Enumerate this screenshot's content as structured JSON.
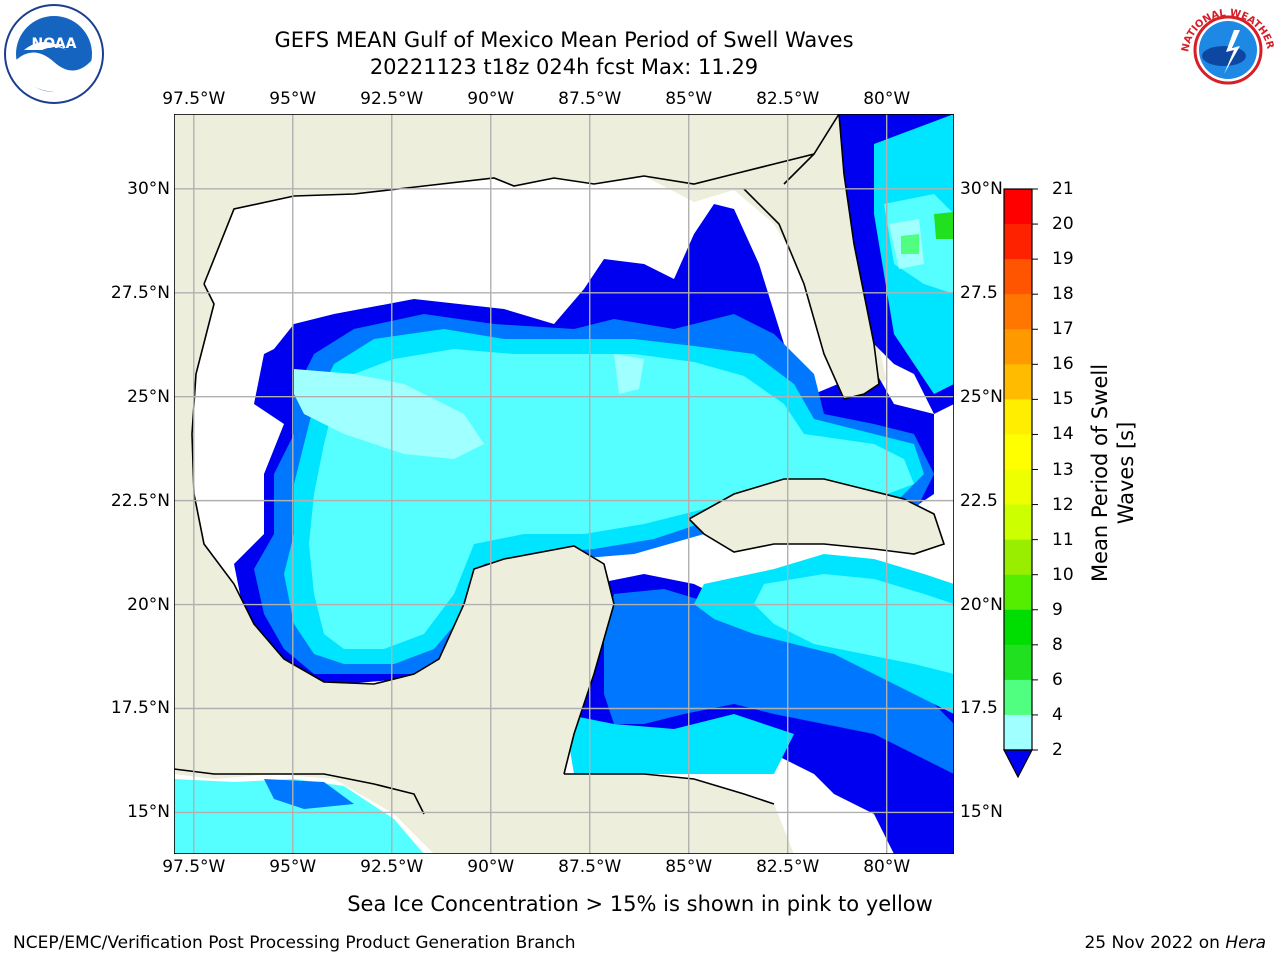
{
  "title": {
    "line1": "GEFS MEAN Gulf of Mexico Mean Period of Swell Waves",
    "line2": "20221123 t18z 024h fcst   Max: 11.29"
  },
  "map": {
    "lon_ticks": [
      "97.5°W",
      "95°W",
      "92.5°W",
      "90°W",
      "87.5°W",
      "85°W",
      "82.5°W",
      "80°W"
    ],
    "lat_ticks": [
      "30°N",
      "27.5°N",
      "25°N",
      "22.5°N",
      "20°N",
      "17.5°N",
      "15°N"
    ],
    "lat_ticks_right": [
      "30°N",
      "27.5",
      "25°N",
      "22.5",
      "20°N",
      "17.5",
      "15°N"
    ],
    "lon_range": [
      -98.0,
      -78.3
    ],
    "lat_range": [
      14.0,
      31.8
    ],
    "grid": true,
    "land_color": "#EEEEDC",
    "ocean_no_data_color": "#FFFFFF"
  },
  "colorbar": {
    "title": "Mean Period of Swell Waves [s]",
    "ticks": [
      "21",
      "20",
      "19",
      "18",
      "17",
      "16",
      "15",
      "14",
      "13",
      "12",
      "11",
      "10",
      "9",
      "8",
      "6",
      "4",
      "2"
    ],
    "colors": [
      "#0000F0",
      "#0077FF",
      "#00E5FF",
      "#35FFFF",
      "#55FFFF",
      "#A0FFFF",
      "#50FF80",
      "#20E020",
      "#00DD00",
      "#55EE00",
      "#99EE00",
      "#CCFF00",
      "#EEFF00",
      "#FFFF00",
      "#FFEE00",
      "#FFBB00",
      "#FF9900",
      "#FF7700",
      "#FF5500",
      "#FF2200",
      "#FF0000"
    ]
  },
  "footer": {
    "note": "Sea Ice Concentration > 15% is shown in pink to yellow",
    "credit": "NCEP/EMC/Verification Post Processing Product Generation Branch",
    "date": "25 Nov 2022 on ",
    "host": "Hera"
  },
  "logos": {
    "left": "noaa-logo",
    "right": "nws-logo",
    "left_text": "NOAA",
    "right_text": "NATIONAL WEATHER SERVICE"
  }
}
